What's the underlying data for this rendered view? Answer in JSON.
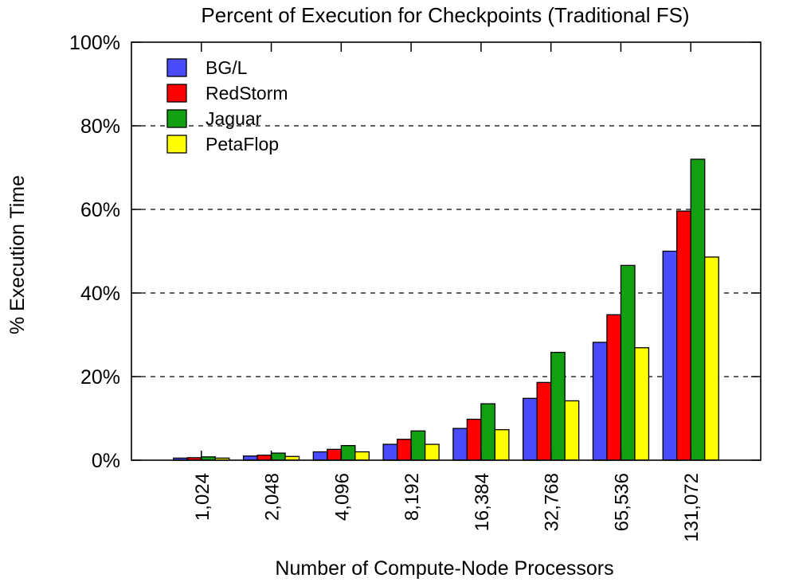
{
  "chart_data": {
    "type": "bar",
    "title": "Percent of Execution for Checkpoints (Traditional FS)",
    "xlabel": "Number of Compute-Node Processors",
    "ylabel": "% Execution Time",
    "categories": [
      "1,024",
      "2,048",
      "4,096",
      "8,192",
      "16,384",
      "32,768",
      "65,536",
      "131,072"
    ],
    "series": [
      {
        "name": "BG/L",
        "color": "#4a4aff",
        "values": [
          0.5,
          1.0,
          2.0,
          3.8,
          7.6,
          14.8,
          28.2,
          50.0
        ]
      },
      {
        "name": "RedStorm",
        "color": "#ff0000",
        "values": [
          0.6,
          1.2,
          2.6,
          5.0,
          9.8,
          18.6,
          34.8,
          59.6
        ]
      },
      {
        "name": "Jaguar",
        "color": "#12a012",
        "values": [
          0.8,
          1.7,
          3.5,
          7.0,
          13.5,
          25.8,
          46.6,
          72.0
        ]
      },
      {
        "name": "PetaFlop",
        "color": "#ffff00",
        "values": [
          0.5,
          0.9,
          2.0,
          3.8,
          7.3,
          14.2,
          26.9,
          48.6
        ]
      }
    ],
    "ylim": [
      0,
      100
    ],
    "yticks": [
      "0%",
      "20%",
      "40%",
      "60%",
      "80%",
      "100%"
    ],
    "ytick_values": [
      0,
      20,
      40,
      60,
      80,
      100
    ],
    "grid": "horizontal-dashed",
    "legend_position": "top-left"
  }
}
